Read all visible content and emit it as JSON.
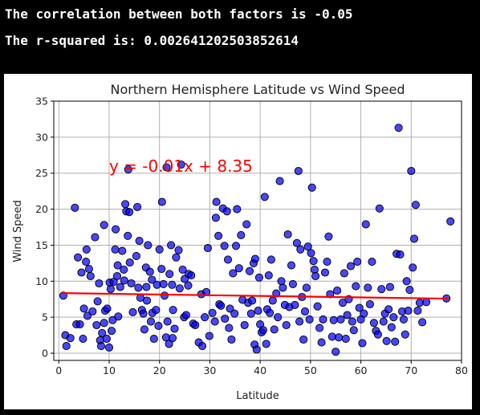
{
  "output": {
    "line1": "The correlation between both factors is -0.05",
    "line2": "The r-squared is: 0.002641202503852614"
  },
  "chart_data": {
    "type": "scatter",
    "title": "Northern Hemisphere Latitude vs Wind Speed",
    "xlabel": "Latitude",
    "ylabel": "Wind Speed",
    "xlim": [
      -1,
      80
    ],
    "ylim": [
      -1,
      35
    ],
    "xticks": [
      0,
      10,
      20,
      30,
      40,
      50,
      60,
      70,
      80
    ],
    "yticks": [
      0,
      5,
      10,
      15,
      20,
      25,
      30,
      35
    ],
    "grid": true,
    "point_color": "#0000ff",
    "line_color": "#ff0000",
    "regression": {
      "slope": -0.01,
      "intercept": 8.35,
      "x_range": [
        0.5,
        77.5
      ]
    },
    "annotation": {
      "text": "y = -0.01x + 8.35",
      "x": 10,
      "y": 26
    },
    "points": [
      [
        0.9,
        8.0
      ],
      [
        1.3,
        2.5
      ],
      [
        1.5,
        1.0
      ],
      [
        2.3,
        2.1
      ],
      [
        3.2,
        20.2
      ],
      [
        3.5,
        4.0
      ],
      [
        3.8,
        13.3
      ],
      [
        4.2,
        4.0
      ],
      [
        4.5,
        11.2
      ],
      [
        4.8,
        2.0
      ],
      [
        5.0,
        6.2
      ],
      [
        5.4,
        12.7
      ],
      [
        5.5,
        14.4
      ],
      [
        5.7,
        5.2
      ],
      [
        6.0,
        11.7
      ],
      [
        6.3,
        10.7
      ],
      [
        6.7,
        5.8
      ],
      [
        7.2,
        16.1
      ],
      [
        7.5,
        3.9
      ],
      [
        7.7,
        7.2
      ],
      [
        8.0,
        9.7
      ],
      [
        8.2,
        1.8
      ],
      [
        8.4,
        1.0
      ],
      [
        8.6,
        2.8
      ],
      [
        9.0,
        4.2
      ],
      [
        9.0,
        17.8
      ],
      [
        9.2,
        5.9
      ],
      [
        9.5,
        2.0
      ],
      [
        9.6,
        6.2
      ],
      [
        10.0,
        0.8
      ],
      [
        10.1,
        9.8
      ],
      [
        10.3,
        8.9
      ],
      [
        10.5,
        3.1
      ],
      [
        10.7,
        4.6
      ],
      [
        10.9,
        9.9
      ],
      [
        11.2,
        14.4
      ],
      [
        11.3,
        17.2
      ],
      [
        11.6,
        10.7
      ],
      [
        11.7,
        12.2
      ],
      [
        11.8,
        5.1
      ],
      [
        12.2,
        9.2
      ],
      [
        12.6,
        14.2
      ],
      [
        12.9,
        11.6
      ],
      [
        13.0,
        10.1
      ],
      [
        13.2,
        20.7
      ],
      [
        13.4,
        19.7
      ],
      [
        13.7,
        16.3
      ],
      [
        13.8,
        25.5
      ],
      [
        14.0,
        19.6
      ],
      [
        14.1,
        12.6
      ],
      [
        14.4,
        9.7
      ],
      [
        14.7,
        5.7
      ],
      [
        15.4,
        13.5
      ],
      [
        15.6,
        20.3
      ],
      [
        15.8,
        9.1
      ],
      [
        16.0,
        15.6
      ],
      [
        16.2,
        7.7
      ],
      [
        16.5,
        6.0
      ],
      [
        16.8,
        5.5
      ],
      [
        17.0,
        3.3
      ],
      [
        17.3,
        11.9
      ],
      [
        17.4,
        9.2
      ],
      [
        17.5,
        7.3
      ],
      [
        17.7,
        15.0
      ],
      [
        18.1,
        11.3
      ],
      [
        18.3,
        4.4
      ],
      [
        18.5,
        10.2
      ],
      [
        18.6,
        5.6
      ],
      [
        18.9,
        2.0
      ],
      [
        19.3,
        6.0
      ],
      [
        19.5,
        9.5
      ],
      [
        19.8,
        3.8
      ],
      [
        20.0,
        14.4
      ],
      [
        20.4,
        11.7
      ],
      [
        20.5,
        21.0
      ],
      [
        20.8,
        9.6
      ],
      [
        21.0,
        8.0
      ],
      [
        21.3,
        2.2
      ],
      [
        21.4,
        25.8
      ],
      [
        21.6,
        4.4
      ],
      [
        21.9,
        1.3
      ],
      [
        22.0,
        11.0
      ],
      [
        22.3,
        15.0
      ],
      [
        22.5,
        9.5
      ],
      [
        22.6,
        2.1
      ],
      [
        22.7,
        6.0
      ],
      [
        23.0,
        3.4
      ],
      [
        23.3,
        13.3
      ],
      [
        23.8,
        14.3
      ],
      [
        24.0,
        9.0
      ],
      [
        24.3,
        26.2
      ],
      [
        24.6,
        11.6
      ],
      [
        24.9,
        5.0
      ],
      [
        25.0,
        10.3
      ],
      [
        25.3,
        5.3
      ],
      [
        25.7,
        9.4
      ],
      [
        25.8,
        11.0
      ],
      [
        26.3,
        10.8
      ],
      [
        26.7,
        4.1
      ],
      [
        27.1,
        3.9
      ],
      [
        27.8,
        1.5
      ],
      [
        28.3,
        8.2
      ],
      [
        28.5,
        1.0
      ],
      [
        29.0,
        5.0
      ],
      [
        29.3,
        8.5
      ],
      [
        29.6,
        14.6
      ],
      [
        29.9,
        2.4
      ],
      [
        30.5,
        5.6
      ],
      [
        31.0,
        4.4
      ],
      [
        31.2,
        18.8
      ],
      [
        31.3,
        21.0
      ],
      [
        31.7,
        16.3
      ],
      [
        31.9,
        6.8
      ],
      [
        32.2,
        6.6
      ],
      [
        32.6,
        20.1
      ],
      [
        32.9,
        14.9
      ],
      [
        33.0,
        4.8
      ],
      [
        33.4,
        19.7
      ],
      [
        33.6,
        13.0
      ],
      [
        33.8,
        3.5
      ],
      [
        34.0,
        6.2
      ],
      [
        34.3,
        1.9
      ],
      [
        34.6,
        11.1
      ],
      [
        34.9,
        5.5
      ],
      [
        35.2,
        14.9
      ],
      [
        35.4,
        20.0
      ],
      [
        35.8,
        11.8
      ],
      [
        36.2,
        16.4
      ],
      [
        36.5,
        7.4
      ],
      [
        36.9,
        3.9
      ],
      [
        37.3,
        17.9
      ],
      [
        37.6,
        7.0
      ],
      [
        37.9,
        11.4
      ],
      [
        38.2,
        5.5
      ],
      [
        38.4,
        7.3
      ],
      [
        38.7,
        12.5
      ],
      [
        38.9,
        1.2
      ],
      [
        39.0,
        13.1
      ],
      [
        39.3,
        0.5
      ],
      [
        39.6,
        5.9
      ],
      [
        39.8,
        10.5
      ],
      [
        40.0,
        4.0
      ],
      [
        40.3,
        2.9
      ],
      [
        40.6,
        3.2
      ],
      [
        40.9,
        21.7
      ],
      [
        41.2,
        1.3
      ],
      [
        41.4,
        6.1
      ],
      [
        41.7,
        10.8
      ],
      [
        41.9,
        5.6
      ],
      [
        42.2,
        13.0
      ],
      [
        42.5,
        7.3
      ],
      [
        42.8,
        3.3
      ],
      [
        43.2,
        8.3
      ],
      [
        43.5,
        5.0
      ],
      [
        43.9,
        23.9
      ],
      [
        44.2,
        10.0
      ],
      [
        44.5,
        9.1
      ],
      [
        44.9,
        6.7
      ],
      [
        45.2,
        3.9
      ],
      [
        45.5,
        16.5
      ],
      [
        45.8,
        6.4
      ],
      [
        46.2,
        12.2
      ],
      [
        46.5,
        9.6
      ],
      [
        46.9,
        6.7
      ],
      [
        47.3,
        15.3
      ],
      [
        47.6,
        25.3
      ],
      [
        47.8,
        4.4
      ],
      [
        48.0,
        14.4
      ],
      [
        48.3,
        7.8
      ],
      [
        48.6,
        1.9
      ],
      [
        48.9,
        5.8
      ],
      [
        49.2,
        9.1
      ],
      [
        49.5,
        14.8
      ],
      [
        49.8,
        4.7
      ],
      [
        50.1,
        13.9
      ],
      [
        50.3,
        23.0
      ],
      [
        50.6,
        12.8
      ],
      [
        50.8,
        11.6
      ],
      [
        51.0,
        10.7
      ],
      [
        51.4,
        6.5
      ],
      [
        51.8,
        3.5
      ],
      [
        52.2,
        1.5
      ],
      [
        52.5,
        4.7
      ],
      [
        52.9,
        11.2
      ],
      [
        53.3,
        12.7
      ],
      [
        53.6,
        16.2
      ],
      [
        53.9,
        8.2
      ],
      [
        54.3,
        2.3
      ],
      [
        54.6,
        4.6
      ],
      [
        55.0,
        0.2
      ],
      [
        55.3,
        8.7
      ],
      [
        55.6,
        2.2
      ],
      [
        56.0,
        4.7
      ],
      [
        56.4,
        7.0
      ],
      [
        56.7,
        11.1
      ],
      [
        57.0,
        2.0
      ],
      [
        57.3,
        5.3
      ],
      [
        57.6,
        7.5
      ],
      [
        58.0,
        12.1
      ],
      [
        58.3,
        4.4
      ],
      [
        58.6,
        3.2
      ],
      [
        59.0,
        9.3
      ],
      [
        59.3,
        12.7
      ],
      [
        59.7,
        6.3
      ],
      [
        60.0,
        4.7
      ],
      [
        60.3,
        1.4
      ],
      [
        60.6,
        5.5
      ],
      [
        61.0,
        17.9
      ],
      [
        61.4,
        9.1
      ],
      [
        61.8,
        6.8
      ],
      [
        62.2,
        12.7
      ],
      [
        62.6,
        4.2
      ],
      [
        63.0,
        3.1
      ],
      [
        63.4,
        2.6
      ],
      [
        63.7,
        20.1
      ],
      [
        64.1,
        8.9
      ],
      [
        64.5,
        4.4
      ],
      [
        64.8,
        5.5
      ],
      [
        65.1,
        1.7
      ],
      [
        65.5,
        6.1
      ],
      [
        65.8,
        9.2
      ],
      [
        66.1,
        3.6
      ],
      [
        66.5,
        5.0
      ],
      [
        66.8,
        1.6
      ],
      [
        67.1,
        13.8
      ],
      [
        67.5,
        31.3
      ],
      [
        67.8,
        13.7
      ],
      [
        68.2,
        5.8
      ],
      [
        68.5,
        4.7
      ],
      [
        68.8,
        2.6
      ],
      [
        69.1,
        10.0
      ],
      [
        69.4,
        5.9
      ],
      [
        69.7,
        8.8
      ],
      [
        70.0,
        25.3
      ],
      [
        70.3,
        11.9
      ],
      [
        70.6,
        15.9
      ],
      [
        70.9,
        20.6
      ],
      [
        71.3,
        5.9
      ],
      [
        71.7,
        7.0
      ],
      [
        72.2,
        4.3
      ],
      [
        73.0,
        7.1
      ],
      [
        77.0,
        7.6
      ],
      [
        77.8,
        18.3
      ]
    ]
  }
}
